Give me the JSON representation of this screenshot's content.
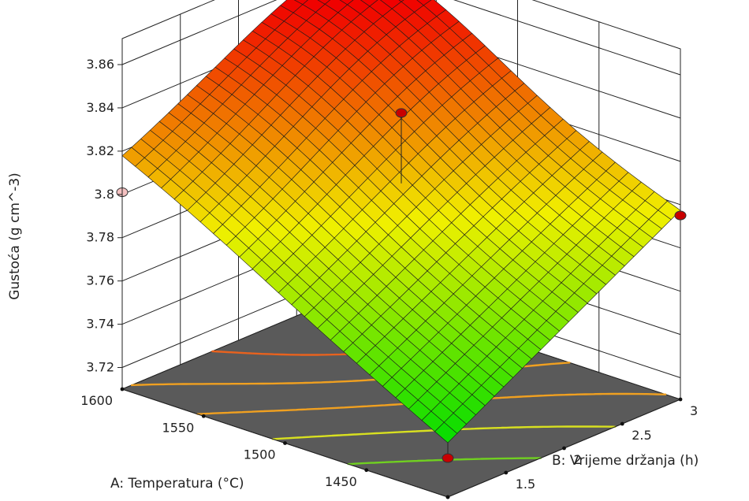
{
  "chart_data": {
    "type": "surface3d",
    "title": "",
    "zlabel": "Gustoća (g cm^-3)",
    "xlabel": "A: Temperatura (°C)",
    "ylabel": "B: Vrijeme držanja (h)",
    "xlim": [
      1400,
      1600
    ],
    "ylim": [
      1,
      3
    ],
    "zlim": [
      3.71,
      3.86
    ],
    "x_ticks": [
      "1400",
      "1450",
      "1500",
      "1550",
      "1600"
    ],
    "y_ticks": [
      "1",
      "1.5",
      "2",
      "2.5",
      "3"
    ],
    "z_ticks": [
      "3.72",
      "3.74",
      "3.76",
      "3.78",
      "3.8",
      "3.82",
      "3.84",
      "3.86"
    ],
    "model": {
      "description_none": "",
      "z_at_corners": {
        "T1600_t1": 3.814,
        "T1400_t1": 3.735,
        "T1400_t3": 3.797,
        "T1600_t3": 3.85
      },
      "z_peak": {
        "T": 1570,
        "t": 2.7,
        "z": 3.858
      }
    },
    "design_points": [
      {
        "T": 1600,
        "t": 1,
        "z": 3.801,
        "below_surface": true
      },
      {
        "T": 1600,
        "t": 3,
        "z": 3.86,
        "below_surface": false
      },
      {
        "T": 1500,
        "t": 2,
        "z": 3.84,
        "below_surface": false
      },
      {
        "T": 1400,
        "t": 3,
        "z": 3.795,
        "below_surface": false
      },
      {
        "T": 1400,
        "t": 1,
        "z": 3.728,
        "below_surface": false
      }
    ],
    "contour_levels": [
      3.76,
      3.78,
      3.8,
      3.82,
      3.84
    ],
    "colors": {
      "floor": "#5a5a5a",
      "contour_high": "#e8621e",
      "contour_mid": "#f0a020",
      "contour_low": "#d8e020",
      "contour_lowest": "#70d020",
      "point": "#c80000",
      "point_below": "#f4c0c0",
      "surface_low": "#00e000",
      "surface_mid": "#f0f000",
      "surface_high": "#f00000"
    }
  }
}
